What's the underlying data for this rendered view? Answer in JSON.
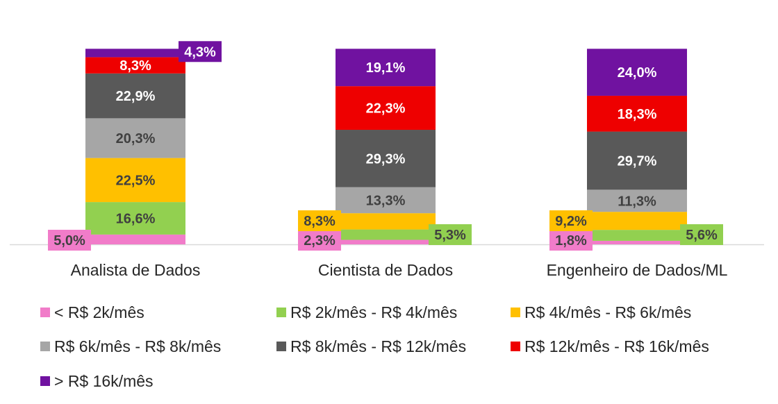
{
  "chart_data": {
    "type": "bar",
    "stacked": true,
    "categories": [
      "Analista de Dados",
      "Cientista de Dados",
      "Engenheiro de Dados/ML"
    ],
    "series": [
      {
        "name": "< R$ 2k/mês",
        "color": "#F17CC9",
        "values": [
          5.0,
          2.3,
          1.8
        ],
        "labels": [
          "5,0%",
          "2,3%",
          "1,8%"
        ]
      },
      {
        "name": "R$ 2k/mês - R$ 4k/mês",
        "color": "#92D050",
        "values": [
          16.6,
          5.3,
          5.6
        ],
        "labels": [
          "16,6%",
          "5,3%",
          "5,6%"
        ]
      },
      {
        "name": "R$ 4k/mês - R$ 6k/mês",
        "color": "#FFC000",
        "values": [
          22.5,
          8.3,
          9.2
        ],
        "labels": [
          "22,5%",
          "8,3%",
          "9,2%"
        ]
      },
      {
        "name": "R$ 6k/mês - R$ 8k/mês",
        "color": "#A6A6A6",
        "values": [
          20.3,
          13.3,
          11.3
        ],
        "labels": [
          "20,3%",
          "13,3%",
          "11,3%"
        ]
      },
      {
        "name": "R$ 8k/mês - R$ 12k/mês",
        "color": "#595959",
        "values": [
          22.9,
          29.3,
          29.7
        ],
        "labels": [
          "22,9%",
          "29,3%",
          "29,7%"
        ]
      },
      {
        "name": "R$ 12k/mês - R$ 16k/mês",
        "color": "#EE0000",
        "values": [
          8.3,
          22.3,
          18.3
        ],
        "labels": [
          "8,3%",
          "22,3%",
          "18,3%"
        ]
      },
      {
        "name": "> R$ 16k/mês",
        "color": "#7012A0",
        "values": [
          4.3,
          19.1,
          24.0
        ],
        "labels": [
          "4,3%",
          "19,1%",
          "24,0%"
        ]
      }
    ],
    "ylim": [
      0,
      100
    ],
    "grid": false,
    "legend_position": "bottom"
  }
}
